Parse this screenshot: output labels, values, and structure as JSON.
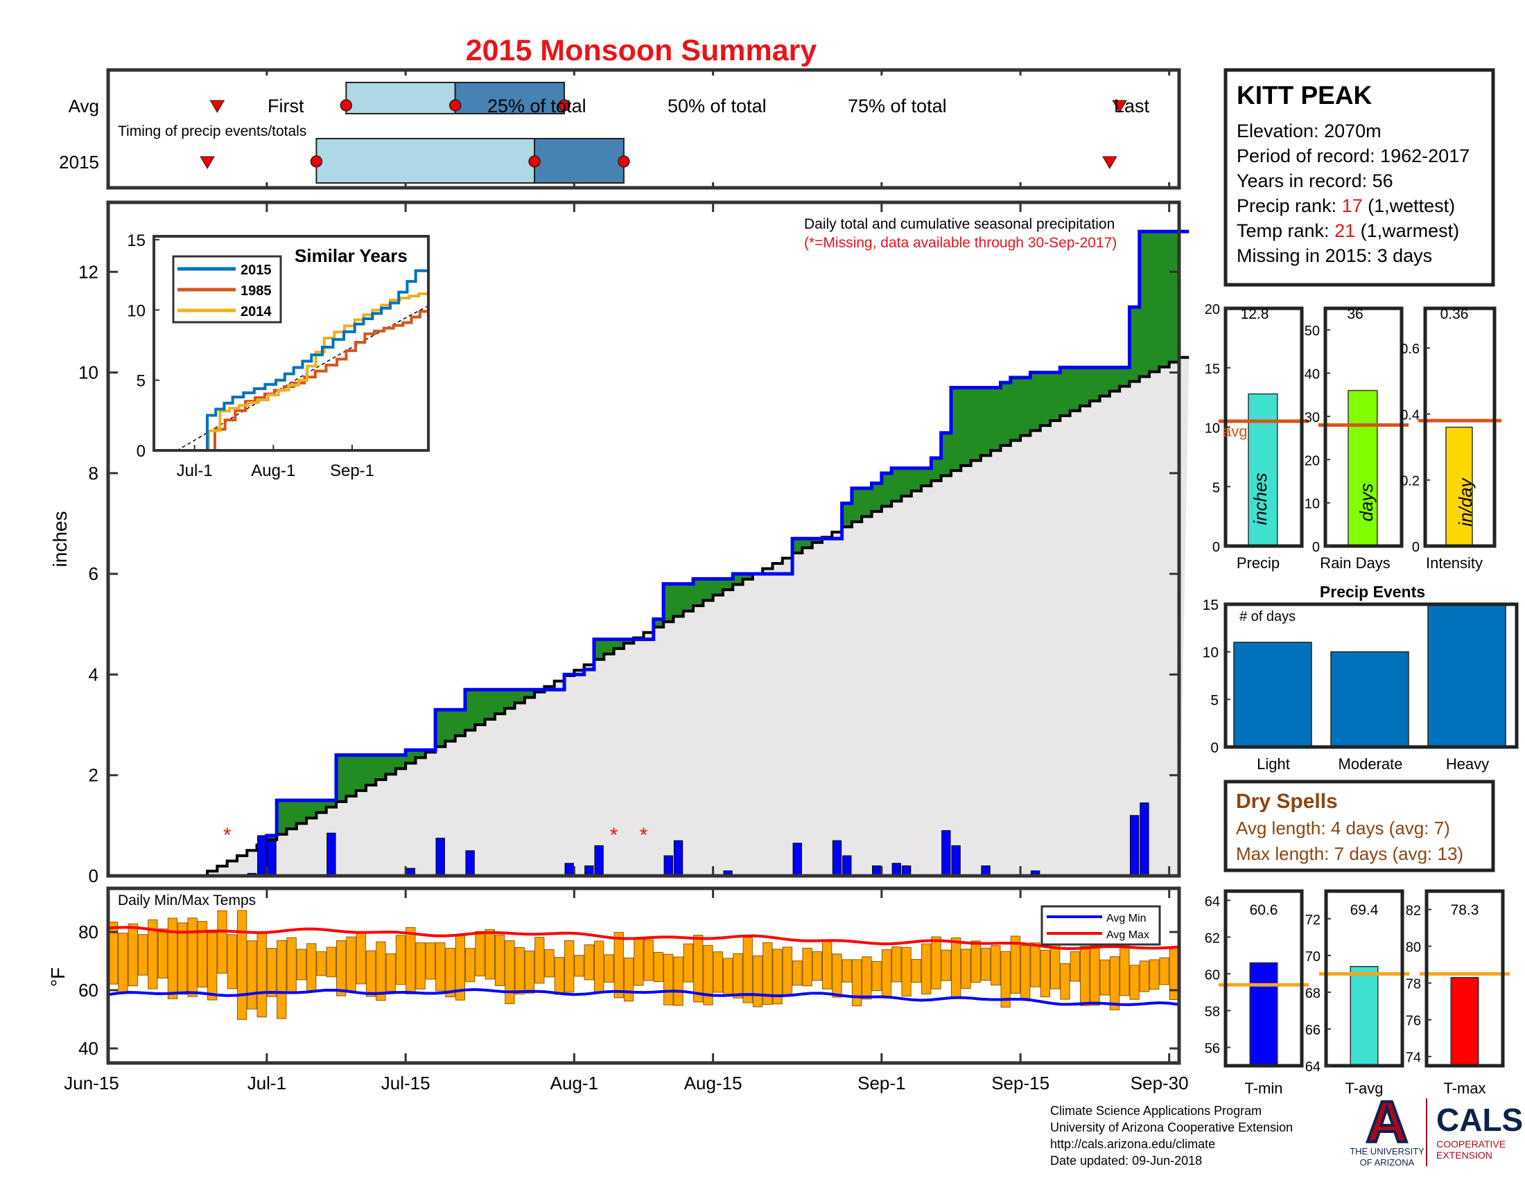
{
  "title": "2015 Monsoon Summary",
  "timing": {
    "row_avg": "Avg",
    "row_year": "2015",
    "caption": "Timing of precip events/totals",
    "first": "First",
    "p25": "25% of total",
    "p50": "50% of total",
    "p75": "75% of total",
    "last": "Last",
    "avg_days": {
      "first": 11,
      "p25": 24,
      "p50": 35,
      "p75": 46,
      "last": 102
    },
    "yr_days": {
      "first": 10,
      "p25": 21,
      "p50": 43,
      "p75": 52,
      "last": 101
    }
  },
  "station": {
    "name": "KITT PEAK",
    "elevation": "Elevation: 2070m",
    "period": "Period of record: 1962-2017",
    "years": "Years in record: 56",
    "precip_rank_label": "Precip rank: ",
    "precip_rank": "17",
    "precip_rank_note": " (1,wettest)",
    "temp_rank_label": "Temp rank: ",
    "temp_rank": "21",
    "temp_rank_note": " (1,warmest)",
    "missing": "Missing in 2015: 3 days"
  },
  "main": {
    "annotation1": "Daily total and cumulative seasonal precipitation",
    "annotation2": "(*=Missing, data available through 30-Sep-2017)",
    "ylabel": "inches",
    "yticks": [
      "0",
      "2",
      "4",
      "6",
      "8",
      "10",
      "12"
    ],
    "xticks": [
      "Jun-15",
      "Jul-1",
      "Jul-15",
      "Aug-1",
      "Aug-15",
      "Sep-1",
      "Sep-15",
      "Sep-30"
    ],
    "missing_marker": "*"
  },
  "inset": {
    "title": "Similar Years",
    "legend": [
      "2015",
      "1985",
      "2014"
    ],
    "yticks": [
      "0",
      "5",
      "10",
      "15"
    ],
    "xticks": [
      "Jul-1",
      "Aug-1",
      "Sep-1"
    ]
  },
  "temps": {
    "title": "Daily Min/Max Temps",
    "ylabel": "°F",
    "yticks": [
      "40",
      "60",
      "80"
    ],
    "legend_min": "Avg Min",
    "legend_max": "Avg Max"
  },
  "stats": {
    "precip": {
      "value": "12.8",
      "label": "Precip",
      "unit": "inches",
      "yticks": [
        "0",
        "5",
        "10",
        "15",
        "20"
      ],
      "avg_label": "avg"
    },
    "raindays": {
      "value": "36",
      "label": "Rain Days",
      "unit": "days",
      "yticks": [
        "0",
        "10",
        "20",
        "30",
        "40",
        "50"
      ]
    },
    "intensity": {
      "value": "0.36",
      "label": "Intensity",
      "unit": "in/day",
      "yticks": [
        "0",
        "0.2",
        "0.4",
        "0.6"
      ]
    }
  },
  "events": {
    "title": "Precip Events",
    "ylabel": "# of days",
    "categories": [
      "Light",
      "Moderate",
      "Heavy"
    ],
    "values": [
      11,
      10,
      15
    ],
    "yticks": [
      "0",
      "5",
      "10",
      "15"
    ]
  },
  "dry": {
    "title": "Dry Spells",
    "avg": "Avg length: 4 days (avg: 7)",
    "max": "Max length: 7 days (avg: 13)"
  },
  "tstats": {
    "tmin": {
      "value": "60.6",
      "label": "T-min",
      "yticks": [
        "56",
        "58",
        "60",
        "62",
        "64"
      ]
    },
    "tavg": {
      "value": "69.4",
      "label": "T-avg",
      "yticks": [
        "64",
        "66",
        "68",
        "70",
        "72"
      ]
    },
    "tmax": {
      "value": "78.3",
      "label": "T-max",
      "yticks": [
        "74",
        "76",
        "78",
        "80",
        "82"
      ]
    }
  },
  "footer": {
    "line1": "Climate Science Applications Program",
    "line2": "University of Arizona Cooperative Extension",
    "line3": "http://cals.arizona.edu/climate",
    "line4": " Date updated: 09-Jun-2018",
    "ua_logo": "A",
    "ua1": "THE UNIVERSITY",
    "ua2": "OF ARIZONA",
    "cals": "CALS",
    "cals1": "COOPERATIVE",
    "cals2": "EXTENSION"
  },
  "colors": {
    "title": "#e8141b",
    "above": "#228b22",
    "below": "#b8860b",
    "avgfill": "#e8e6e6",
    "obs": "#0000ff",
    "daily": "#0000ff",
    "tempbar": "#ffa500",
    "avgmin": "#0000ff",
    "avgmax": "#ff0000",
    "light_blue": "#add8e6",
    "steel_blue": "#4682b4",
    "bar_blue": "#0072bd",
    "precip_bar": "#40e0d0",
    "rain_bar": "#7fff00",
    "int_bar": "#ffd700",
    "avg_line": "#d95319",
    "tavg_line": "#f5a623",
    "ua_blue": "#0c234b",
    "ua_red": "#ab0520"
  },
  "chart_data": [
    {
      "type": "area",
      "title": "Daily total and cumulative seasonal precipitation",
      "ylabel": "inches",
      "ylim": [
        0,
        12.8
      ],
      "x_start": "Jun-15",
      "x_end": "Sep-30",
      "series": [
        {
          "name": "2015",
          "points": [
            [
              "Jun-15",
              0
            ],
            [
              "Jun-29",
              0
            ],
            [
              "Jun-30",
              0.8
            ],
            [
              "Jul-1",
              1.5
            ],
            [
              "Jul-6",
              1.5
            ],
            [
              "Jul-7",
              2.4
            ],
            [
              "Jul-13",
              2.4
            ],
            [
              "Jul-14",
              2.5
            ],
            [
              "Jul-16",
              2.5
            ],
            [
              "Jul-17",
              3.3
            ],
            [
              "Jul-19",
              3.3
            ],
            [
              "Jul-20",
              3.7
            ],
            [
              "Jul-29",
              3.7
            ],
            [
              "Jul-30",
              4.0
            ],
            [
              "Jul-31",
              4.0
            ],
            [
              "Aug-1",
              4.1
            ],
            [
              "Aug-2",
              4.7
            ],
            [
              "Aug-6",
              4.7
            ],
            [
              "Aug-8",
              5.1
            ],
            [
              "Aug-9",
              5.8
            ],
            [
              "Aug-11",
              5.8
            ],
            [
              "Aug-12",
              5.9
            ],
            [
              "Aug-15",
              5.9
            ],
            [
              "Aug-16",
              6.0
            ],
            [
              "Aug-21",
              6.0
            ],
            [
              "Aug-22",
              6.7
            ],
            [
              "Aug-26",
              6.7
            ],
            [
              "Aug-27",
              7.4
            ],
            [
              "Aug-28",
              7.7
            ],
            [
              "Aug-29",
              7.7
            ],
            [
              "Aug-30",
              7.8
            ],
            [
              "Aug-31",
              8.0
            ],
            [
              "Sep-1",
              8.1
            ],
            [
              "Sep-4",
              8.1
            ],
            [
              "Sep-5",
              8.3
            ],
            [
              "Sep-6",
              8.8
            ],
            [
              "Sep-7",
              9.7
            ],
            [
              "Sep-12",
              9.8
            ],
            [
              "Sep-13",
              9.9
            ],
            [
              "Sep-14",
              9.9
            ],
            [
              "Sep-15",
              10.0
            ],
            [
              "Sep-17",
              10.0
            ],
            [
              "Sep-18",
              10.1
            ],
            [
              "Sep-24",
              10.1
            ],
            [
              "Sep-25",
              11.3
            ],
            [
              "Sep-26",
              12.8
            ],
            [
              "Sep-30",
              12.8
            ]
          ]
        }
      ],
      "daily_precip": [
        [
          "Jun-28",
          0.05
        ],
        [
          "Jun-29",
          0.8
        ],
        [
          "Jun-30",
          0.7
        ],
        [
          "Jul-6",
          0.85
        ],
        [
          "Jul-14",
          0.15
        ],
        [
          "Jul-17",
          0.75
        ],
        [
          "Jul-20",
          0.5
        ],
        [
          "Jul-30",
          0.25
        ],
        [
          "Aug-1",
          0.2
        ],
        [
          "Aug-2",
          0.6
        ],
        [
          "Aug-9",
          0.4
        ],
        [
          "Aug-10",
          0.7
        ],
        [
          "Aug-15",
          0.1
        ],
        [
          "Aug-22",
          0.65
        ],
        [
          "Aug-26",
          0.7
        ],
        [
          "Aug-27",
          0.4
        ],
        [
          "Aug-30",
          0.2
        ],
        [
          "Sep-1",
          0.25
        ],
        [
          "Sep-2",
          0.2
        ],
        [
          "Sep-6",
          0.9
        ],
        [
          "Sep-7",
          0.6
        ],
        [
          "Sep-10",
          0.2
        ],
        [
          "Sep-15",
          0.1
        ],
        [
          "Sep-25",
          1.2
        ],
        [
          "Sep-26",
          1.45
        ]
      ],
      "missing_days": [
        "Jun-26",
        "Aug-4",
        "Aug-7"
      ],
      "avg_cumulative_endpoint": 10.3
    },
    {
      "type": "line",
      "title": "Similar Years",
      "ylim": [
        0,
        15
      ],
      "series": [
        {
          "name": "2015",
          "points": [
            [
              "Jun-15",
              0
            ],
            [
              "Jun-30",
              0
            ],
            [
              "Jul-5",
              2.5
            ],
            [
              "Jul-15",
              3.8
            ],
            [
              "Aug-1",
              5.0
            ],
            [
              "Aug-15",
              6.8
            ],
            [
              "Sep-1",
              9.0
            ],
            [
              "Sep-15",
              10.5
            ],
            [
              "Sep-25",
              12.8
            ],
            [
              "Sep-30",
              12.8
            ]
          ]
        },
        {
          "name": "1985",
          "points": [
            [
              "Jun-15",
              0
            ],
            [
              "Jul-3",
              0
            ],
            [
              "Jul-8",
              1.5
            ],
            [
              "Jul-20",
              3.5
            ],
            [
              "Aug-8",
              4.8
            ],
            [
              "Aug-25",
              6.5
            ],
            [
              "Sep-5",
              8.3
            ],
            [
              "Sep-20",
              9.1
            ],
            [
              "Sep-30",
              10.3
            ]
          ]
        },
        {
          "name": "2014",
          "points": [
            [
              "Jun-15",
              0
            ],
            [
              "Jul-1",
              0
            ],
            [
              "Jul-10",
              2.8
            ],
            [
              "Jul-25",
              3.6
            ],
            [
              "Aug-10",
              5.0
            ],
            [
              "Aug-20",
              8.0
            ],
            [
              "Sep-1",
              9.3
            ],
            [
              "Sep-15",
              10.7
            ],
            [
              "Sep-30",
              11.3
            ]
          ]
        }
      ]
    },
    {
      "type": "bar",
      "title": "Daily Min/Max Temps",
      "ylabel": "°F",
      "ylim": [
        35,
        95
      ],
      "series": [
        {
          "name": "Avg Min",
          "start": 58.5,
          "end": 54.8
        },
        {
          "name": "Avg Max",
          "start": 79.5,
          "end": 74.0
        }
      ]
    },
    {
      "type": "bar",
      "categories": [
        "Precip",
        "Rain Days",
        "Intensity"
      ],
      "values": [
        12.8,
        36,
        0.36
      ],
      "avg": [
        10.5,
        28,
        0.38
      ],
      "ylims": [
        [
          0,
          20
        ],
        [
          0,
          55
        ],
        [
          0,
          0.72
        ]
      ]
    },
    {
      "type": "bar",
      "title": "Precip Events",
      "ylabel": "# of days",
      "categories": [
        "Light",
        "Moderate",
        "Heavy"
      ],
      "values": [
        11,
        10,
        15
      ],
      "ylim": [
        0,
        15
      ]
    },
    {
      "type": "bar",
      "categories": [
        "T-min",
        "T-avg",
        "T-max"
      ],
      "values": [
        60.6,
        69.4,
        78.3
      ],
      "avg": [
        59.4,
        69.0,
        78.5
      ],
      "ylims": [
        [
          55,
          64.5
        ],
        [
          64,
          73.5
        ],
        [
          73.5,
          83
        ]
      ]
    }
  ]
}
